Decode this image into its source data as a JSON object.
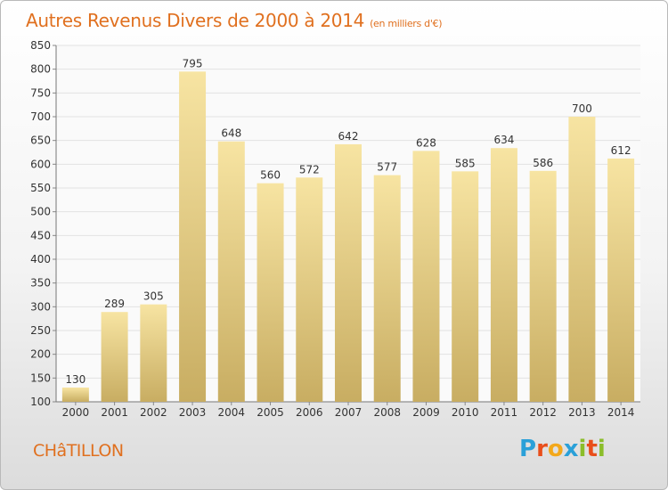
{
  "header": {
    "title": "Autres Revenus Divers de 2000 à 2014",
    "subtitle": "(en milliers d'€)"
  },
  "footer": {
    "commune": "CHâTILLON",
    "logo_letters": [
      "P",
      "r",
      "o",
      "x",
      "i",
      "t",
      "i"
    ],
    "logo_colors": [
      "#2aa0d8",
      "#e94e1b",
      "#f3a81b",
      "#2aa0d8",
      "#8bbd2a",
      "#e94e1b",
      "#8bbd2a"
    ]
  },
  "colors": {
    "accent": "#e0701f",
    "bar_top": "#f7e4a2",
    "bar_bottom": "#c8ad62",
    "gridline": "#e2e2e2"
  },
  "chart_data": {
    "type": "bar",
    "categories": [
      "2000",
      "2001",
      "2002",
      "2003",
      "2004",
      "2005",
      "2006",
      "2007",
      "2008",
      "2009",
      "2010",
      "2011",
      "2012",
      "2013",
      "2014"
    ],
    "values": [
      130,
      289,
      305,
      795,
      648,
      560,
      572,
      642,
      577,
      628,
      585,
      634,
      586,
      700,
      612
    ],
    "ylim": [
      100,
      850
    ],
    "yticks": [
      100,
      150,
      200,
      250,
      300,
      350,
      400,
      450,
      500,
      550,
      600,
      650,
      700,
      750,
      800,
      850
    ],
    "grid": true,
    "data_labels": true
  }
}
